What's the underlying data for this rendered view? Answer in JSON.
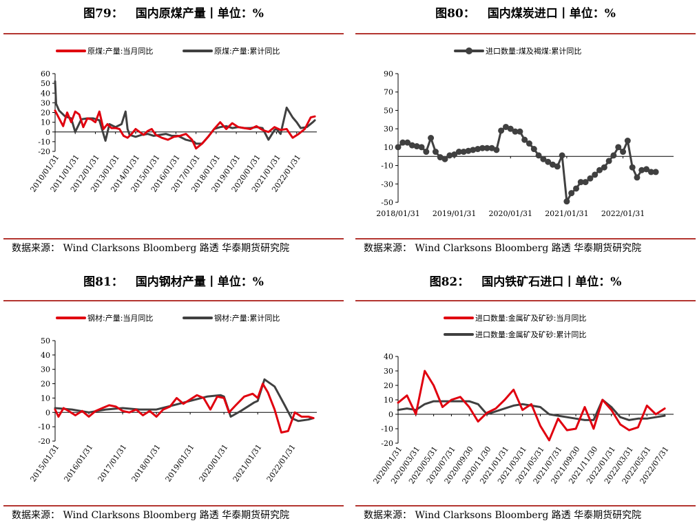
{
  "panels": [
    {
      "fig": "图79：",
      "title": "国内原煤产量丨单位：%",
      "source": "数据来源：  Wind Clarksons Bloomberg 路透  华泰期货研究院",
      "chart_data": {
        "type": "line",
        "x_ticks": [
          "2010/01/31",
          "2011/01/31",
          "2012/01/31",
          "2013/01/31",
          "2014/01/31",
          "2015/01/31",
          "2016/01/31",
          "2017/01/31",
          "2018/01/31",
          "2019/01/31",
          "2020/01/31",
          "2021/01/31",
          "2022/01/31"
        ],
        "ylim": [
          -20,
          60
        ],
        "y_ticks": [
          -20,
          -10,
          0,
          10,
          20,
          30,
          40,
          50,
          60
        ],
        "xlim": [
          2010.0,
          2023.0
        ],
        "series": [
          {
            "name": "原煤:产量:当月同比",
            "color": "#e0000f",
            "x": [
              2010.0,
              2010.2,
              2010.4,
              2010.6,
              2010.8,
              2011.0,
              2011.2,
              2011.4,
              2011.6,
              2011.8,
              2012.0,
              2012.2,
              2012.4,
              2012.6,
              2012.8,
              2013.0,
              2013.2,
              2013.4,
              2013.6,
              2013.8,
              2014.0,
              2014.2,
              2014.4,
              2014.6,
              2014.8,
              2015.0,
              2015.3,
              2015.6,
              2015.9,
              2016.2,
              2016.5,
              2016.8,
              2017.0,
              2017.3,
              2017.6,
              2017.9,
              2018.2,
              2018.5,
              2018.8,
              2019.1,
              2019.4,
              2019.7,
              2020.0,
              2020.3,
              2020.6,
              2020.9,
              2021.2,
              2021.5,
              2021.8,
              2022.1,
              2022.4,
              2022.7,
              2022.9
            ],
            "y": [
              22,
              14,
              6,
              20,
              10,
              21,
              18,
              5,
              14,
              13,
              10,
              21,
              3,
              8,
              4,
              4,
              3,
              -4,
              -6,
              -2,
              3,
              0,
              -3,
              1,
              3,
              -3,
              -6,
              -8,
              -5,
              -4,
              -2,
              -8,
              -17,
              -12,
              -5,
              3,
              10,
              3,
              9,
              5,
              4,
              3,
              6,
              2,
              0,
              5,
              2,
              3,
              -6,
              -2,
              3,
              15,
              16
            ]
          },
          {
            "name": "原煤:产量:累计同比",
            "color": "#404040",
            "x": [
              2010.0,
              2010.05,
              2010.2,
              2010.5,
              2010.8,
              2011.0,
              2011.3,
              2011.6,
              2011.9,
              2012.2,
              2012.5,
              2012.7,
              2013.0,
              2013.3,
              2013.5,
              2013.6,
              2013.7,
              2014.0,
              2014.3,
              2014.6,
              2014.9,
              2015.2,
              2015.5,
              2015.8,
              2016.1,
              2016.5,
              2016.9,
              2017.0,
              2017.3,
              2017.6,
              2017.9,
              2018.2,
              2018.5,
              2018.8,
              2019.1,
              2019.4,
              2019.7,
              2020.0,
              2020.3,
              2020.6,
              2020.9,
              2021.0,
              2021.2,
              2021.5,
              2021.8,
              2022.0,
              2022.2,
              2022.5,
              2022.8,
              2022.9
            ],
            "y": [
              52,
              29,
              22,
              16,
              14,
              0,
              13,
              14,
              14,
              12,
              -9,
              8,
              5,
              8,
              21,
              3,
              -3,
              -5,
              -3,
              -2,
              -4,
              -3,
              -2,
              -4,
              -4,
              -8,
              -10,
              -12,
              -12,
              -5,
              3,
              5,
              6,
              4,
              5,
              4,
              4,
              5,
              4,
              -8,
              2,
              3,
              -2,
              25,
              15,
              10,
              4,
              5,
              10,
              12
            ]
          }
        ]
      }
    },
    {
      "fig": "图80：",
      "title": "国内煤炭进口丨单位：%",
      "source": "数据来源：  Wind Clarksons Bloomberg 路透  华泰期货研究院",
      "chart_data": {
        "type": "line",
        "x_ticks": [
          "2018/01/31",
          "2019/01/31",
          "2020/01/31",
          "2021/01/31",
          "2022/01/31"
        ],
        "ylim": [
          -50,
          90
        ],
        "y_ticks": [
          -50,
          -30,
          -10,
          10,
          30,
          50,
          70,
          90
        ],
        "xlim": [
          2018.0,
          2022.9
        ],
        "series": [
          {
            "name": "进口数量:煤及褐煤:累计同比",
            "color": "#404040",
            "x": [
              2018.0,
              2018.083,
              2018.167,
              2018.25,
              2018.333,
              2018.417,
              2018.5,
              2018.583,
              2018.667,
              2018.75,
              2018.833,
              2018.917,
              2019.0,
              2019.083,
              2019.167,
              2019.25,
              2019.333,
              2019.417,
              2019.5,
              2019.583,
              2019.667,
              2019.75,
              2019.833,
              2019.917,
              2020.0,
              2020.083,
              2020.167,
              2020.25,
              2020.333,
              2020.417,
              2020.5,
              2020.583,
              2020.667,
              2020.75,
              2020.833,
              2020.917,
              2021.0,
              2021.083,
              2021.167,
              2021.25,
              2021.333,
              2021.417,
              2021.5,
              2021.583,
              2021.667,
              2021.75,
              2021.833,
              2021.917,
              2022.0,
              2022.083,
              2022.167,
              2022.25,
              2022.333,
              2022.417,
              2022.5,
              2022.583
            ],
            "y": [
              10,
              15,
              15,
              12,
              11,
              10,
              5,
              20,
              5,
              -1,
              -3,
              1,
              2,
              5,
              5,
              6,
              7,
              8,
              9,
              9,
              9,
              7,
              28,
              32,
              30,
              27,
              27,
              18,
              14,
              8,
              1,
              -3,
              -6,
              -9,
              -11,
              1,
              -49,
              -40,
              -35,
              -28,
              -28,
              -24,
              -20,
              -15,
              -12,
              -5,
              1,
              10,
              5,
              17,
              -12,
              -23,
              -15,
              -14,
              -17,
              -17
            ]
          }
        ]
      }
    },
    {
      "fig": "图81：",
      "title": "国内钢材产量丨单位：%",
      "source": "数据来源：  Wind Clarksons Bloomberg 路透  华泰期货研究院",
      "chart_data": {
        "type": "line",
        "x_ticks": [
          "2015/01/31",
          "2016/01/31",
          "2017/01/31",
          "2018/01/31",
          "2019/01/31",
          "2020/01/31",
          "2021/01/31",
          "2022/01/31"
        ],
        "ylim": [
          -20,
          50
        ],
        "y_ticks": [
          -20,
          -10,
          0,
          10,
          20,
          30,
          40,
          50
        ],
        "xlim": [
          2015.0,
          2022.75
        ],
        "series": [
          {
            "name": "钢材:产量:当月同比",
            "color": "#e0000f",
            "x": [
              2015.0,
              2015.1,
              2015.25,
              2015.4,
              2015.6,
              2015.8,
              2016.0,
              2016.2,
              2016.4,
              2016.6,
              2016.8,
              2017.0,
              2017.2,
              2017.4,
              2017.6,
              2017.8,
              2018.0,
              2018.2,
              2018.4,
              2018.6,
              2018.8,
              2019.0,
              2019.2,
              2019.4,
              2019.6,
              2019.8,
              2020.0,
              2020.15,
              2020.35,
              2020.6,
              2020.85,
              2021.0,
              2021.15,
              2021.3,
              2021.5,
              2021.7,
              2021.9,
              2022.1,
              2022.3,
              2022.5,
              2022.65
            ],
            "y": [
              2,
              -3,
              3,
              1,
              -2,
              1,
              -3,
              1,
              3,
              5,
              4,
              1,
              0,
              2,
              -2,
              1,
              -3,
              2,
              4,
              10,
              6,
              9,
              12,
              10,
              2,
              11,
              10,
              0,
              5,
              11,
              13,
              10,
              20,
              14,
              2,
              -14,
              -13,
              0,
              -3,
              -3,
              -4
            ]
          },
          {
            "name": "钢材:产量:累计同比",
            "color": "#404040",
            "x": [
              2015.0,
              2015.5,
              2016.0,
              2016.5,
              2017.0,
              2017.5,
              2018.0,
              2018.5,
              2019.0,
              2019.5,
              2019.9,
              2020.0,
              2020.2,
              2020.5,
              2020.9,
              2021.0,
              2021.2,
              2021.5,
              2021.8,
              2022.0,
              2022.2,
              2022.5,
              2022.65
            ],
            "y": [
              3,
              2,
              0,
              2,
              3,
              2,
              2,
              5,
              8,
              11,
              12,
              11,
              -3,
              1,
              7,
              8,
              23,
              18,
              5,
              -4,
              -6,
              -5,
              -4
            ]
          }
        ]
      }
    },
    {
      "fig": "图82：",
      "title": "国内铁矿石进口丨单位：%",
      "source": "数据来源：  Wind Clarksons Bloomberg 路透  华泰期货研究院",
      "chart_data": {
        "type": "line",
        "x_ticks": [
          "2020/01/31",
          "2020/03/31",
          "2020/05/31",
          "2020/07/31",
          "2020/09/30",
          "2020/11/30",
          "2021/01/31",
          "2021/03/31",
          "2021/05/31",
          "2021/07/31",
          "2021/09/30",
          "2021/11/30",
          "2022/01/31",
          "2022/03/31",
          "2022/05/31",
          "2022/07/31"
        ],
        "ylim": [
          -20,
          40
        ],
        "y_ticks": [
          -20,
          -10,
          0,
          10,
          20,
          30,
          40
        ],
        "xlim": [
          0,
          31
        ],
        "series": [
          {
            "name": "进口数量:金属矿及矿砂:当月同比",
            "color": "#e0000f",
            "x": [
              0,
              1,
              2,
              3,
              4,
              5,
              6,
              7,
              8,
              9,
              10,
              11,
              12,
              13,
              14,
              15,
              16,
              17,
              18,
              19,
              20,
              21,
              22,
              23,
              24,
              25,
              26,
              27,
              28,
              29,
              30
            ],
            "y": [
              8,
              13,
              0,
              30,
              20,
              5,
              10,
              12,
              5,
              -5,
              1,
              4,
              10,
              17,
              3,
              7,
              -8,
              -18,
              -3,
              -11,
              -10,
              5,
              -10,
              10,
              3,
              -7,
              -11,
              -9,
              6,
              0,
              4
            ]
          },
          {
            "name": "进口数量:金属矿及矿砂:累计同比",
            "color": "#404040",
            "x": [
              0,
              1,
              2,
              3,
              4,
              5,
              6,
              7,
              8,
              9,
              10,
              11,
              12,
              13,
              14,
              15,
              16,
              17,
              18,
              19,
              20,
              21,
              22,
              23,
              24,
              25,
              26,
              27,
              28,
              29,
              30
            ],
            "y": [
              3,
              4,
              3,
              7,
              9,
              9,
              9,
              9,
              9,
              7,
              0,
              2,
              4,
              6,
              7,
              6,
              5,
              0,
              -1,
              -2,
              -3,
              -4,
              -4,
              10,
              5,
              -2,
              -4,
              -3,
              -3,
              -2,
              -1
            ]
          }
        ]
      }
    }
  ]
}
